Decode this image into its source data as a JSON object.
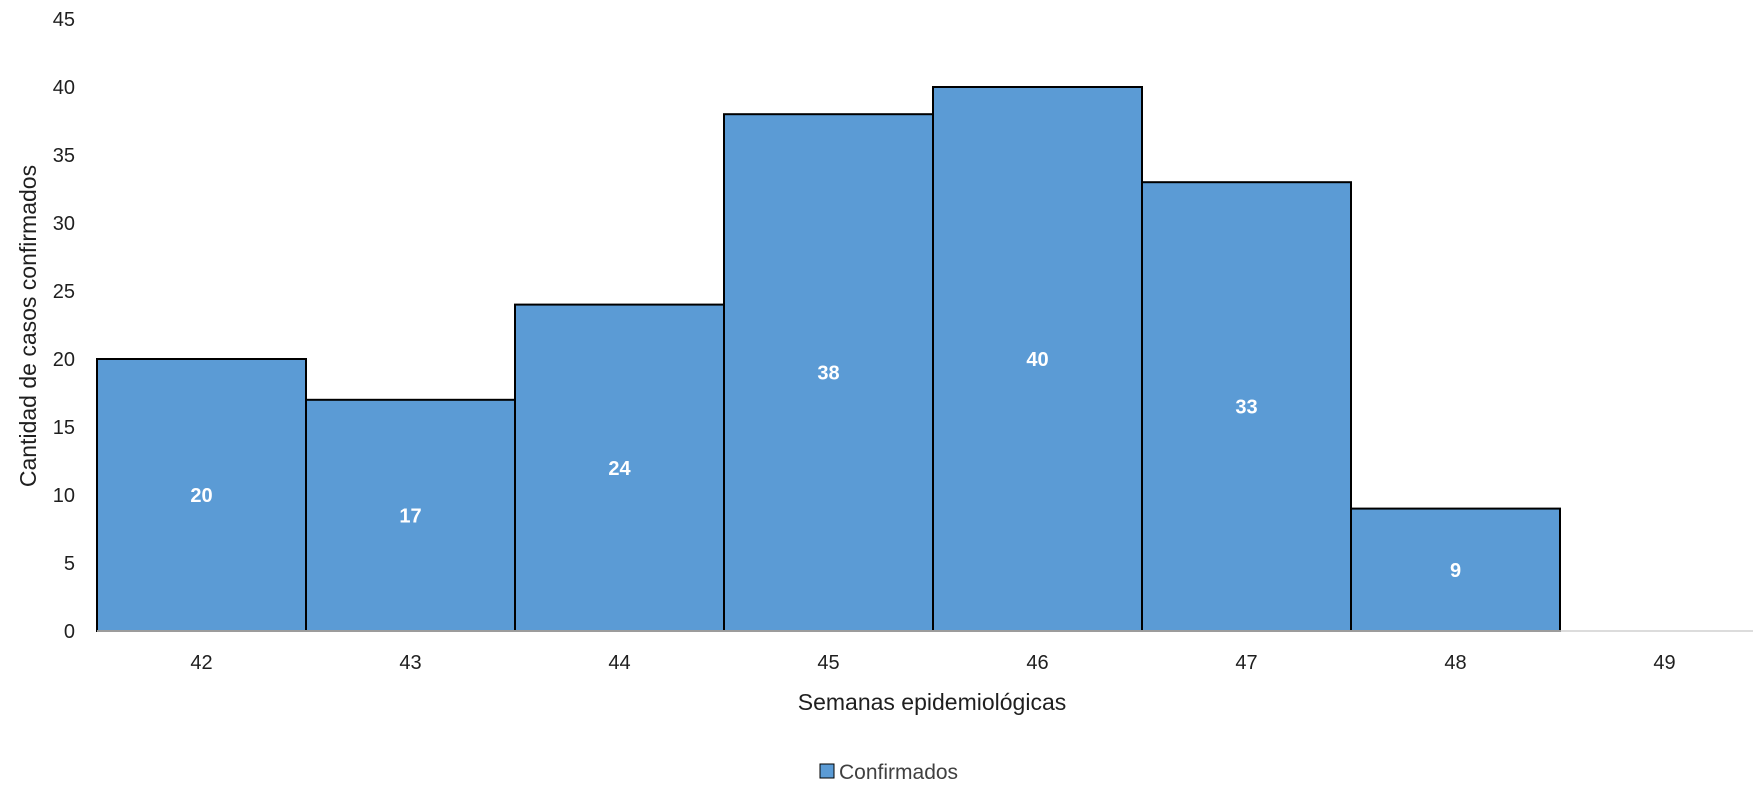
{
  "chart_data": {
    "type": "bar",
    "categories": [
      "42",
      "43",
      "44",
      "45",
      "46",
      "47",
      "48",
      "49"
    ],
    "series": [
      {
        "name": "Confirmados",
        "values": [
          20,
          17,
          24,
          38,
          40,
          33,
          9,
          null
        ],
        "color": "#5B9BD5"
      }
    ],
    "data_labels": [
      "20",
      "17",
      "24",
      "38",
      "40",
      "33",
      "9",
      ""
    ],
    "xlabel": "Semanas epidemiológicas",
    "ylabel": "Cantidad de casos confirmados",
    "ylim": [
      0,
      45
    ],
    "yticks": [
      "0",
      "5",
      "10",
      "15",
      "20",
      "25",
      "30",
      "35",
      "40",
      "45"
    ],
    "grid": false,
    "legend_position": "bottom",
    "bar_outline_color": "#000000",
    "bar_gap": 0
  }
}
